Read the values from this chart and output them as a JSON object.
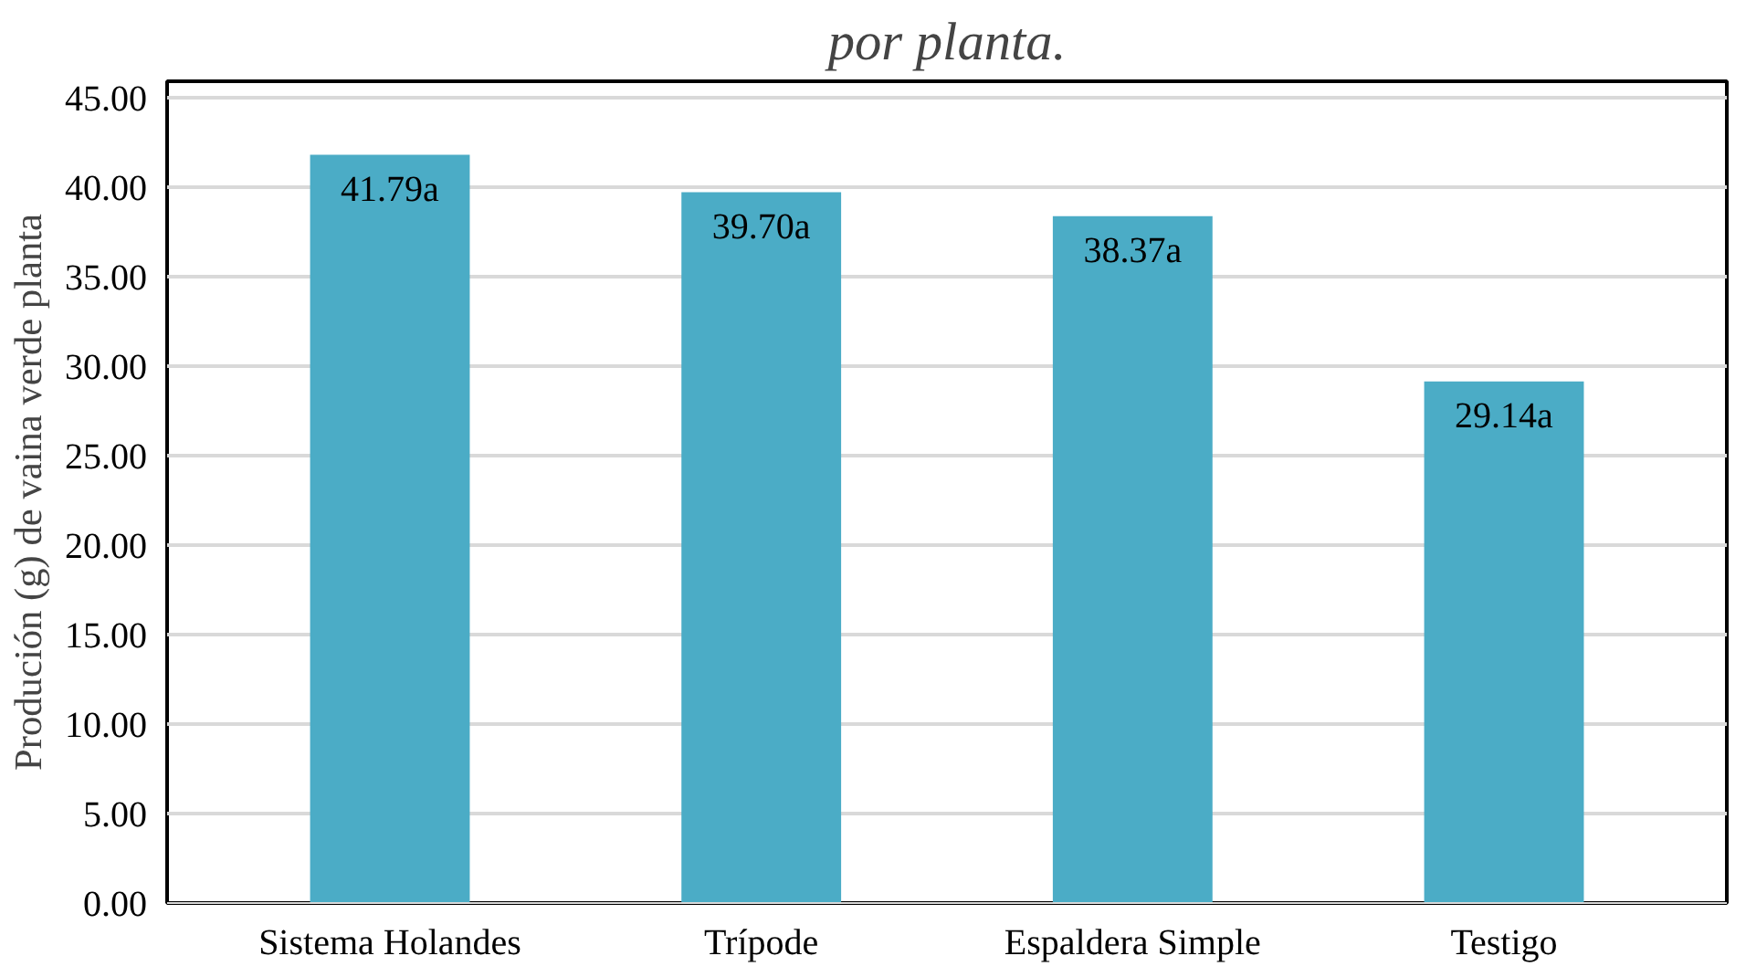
{
  "chart_data": {
    "type": "bar",
    "title": "por planta.",
    "ylabel": "Produción (g) de vaina verde planta",
    "categories": [
      "Sistema Holandes",
      "Trípode",
      "Espaldera Simple",
      "Testigo"
    ],
    "values": [
      41.79,
      39.7,
      38.37,
      29.14
    ],
    "color": "#4bacc6",
    "value_labels": [
      "41.79a",
      "39.70a",
      "38.37a",
      "29.14a"
    ],
    "ylim": [
      0,
      45
    ],
    "yticks": [
      {
        "value": 0,
        "label": "0.00"
      },
      {
        "value": 5,
        "label": "5.00"
      },
      {
        "value": 10,
        "label": "10.00"
      },
      {
        "value": 15,
        "label": "15.00"
      },
      {
        "value": 20,
        "label": "20.00"
      },
      {
        "value": 25,
        "label": "25.00"
      },
      {
        "value": 30,
        "label": "30.00"
      },
      {
        "value": 35,
        "label": "35.00"
      },
      {
        "value": 40,
        "label": "40.00"
      },
      {
        "value": 45,
        "label": "45.00"
      }
    ],
    "grid": "y"
  }
}
